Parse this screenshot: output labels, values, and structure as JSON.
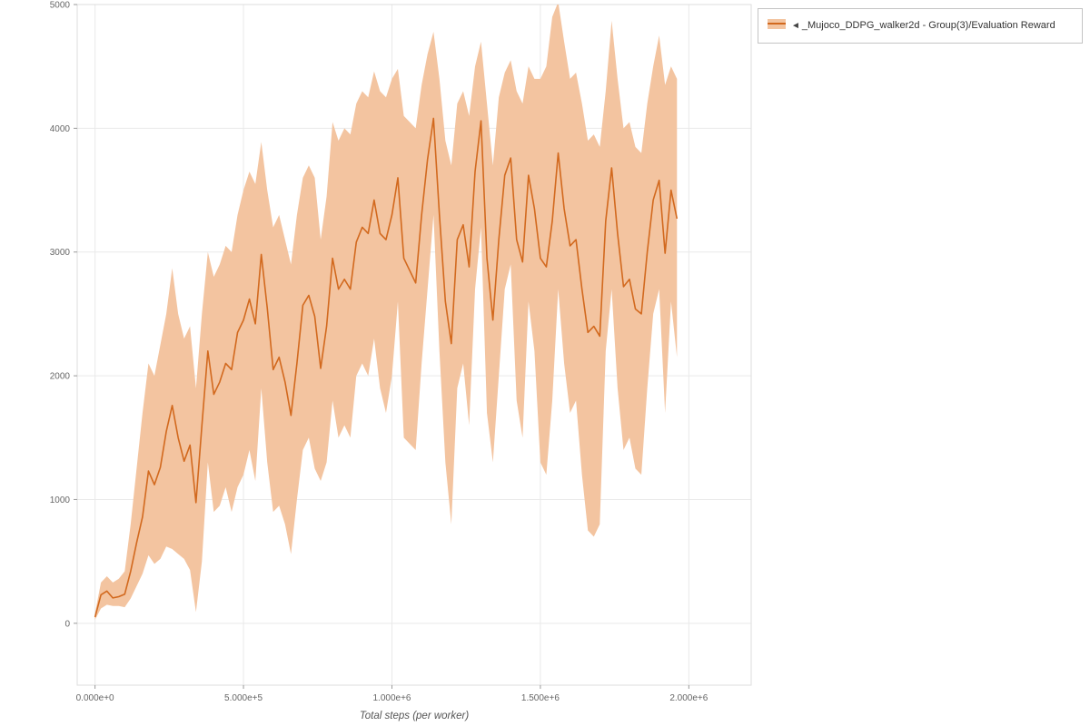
{
  "legend": {
    "marker_icon": "◄",
    "label": "_Mujoco_DDPG_walker2d - Group(3)/Evaluation Reward"
  },
  "chart_data": {
    "type": "line",
    "title": "",
    "xlabel": "Total steps (per worker)",
    "ylabel": "",
    "grid": true,
    "legend_position": "top-right",
    "xlim": [
      -60000,
      2210000
    ],
    "ylim": [
      -500,
      5000
    ],
    "x_ticks": [
      0,
      500000,
      1000000,
      1500000,
      2000000
    ],
    "x_tick_labels": [
      "0.000e+0",
      "5.000e+5",
      "1.000e+6",
      "1.500e+6",
      "2.000e+6"
    ],
    "y_ticks": [
      0,
      1000,
      2000,
      3000,
      4000,
      5000
    ],
    "y_tick_labels": [
      "0",
      "1000",
      "2000",
      "3000",
      "4000",
      "5000"
    ],
    "colors": {
      "line": "#d2691e",
      "band": "#f3c4a0",
      "grid": "#e9e9e9",
      "plot_border": "#dddddd",
      "tick": "#999999",
      "axis_text": "#666666",
      "axis_title": "#555555"
    },
    "x": [
      0,
      20000,
      40000,
      60000,
      80000,
      100000,
      120000,
      140000,
      160000,
      180000,
      200000,
      220000,
      240000,
      260000,
      280000,
      300000,
      320000,
      340000,
      360000,
      380000,
      400000,
      420000,
      440000,
      460000,
      480000,
      500000,
      520000,
      540000,
      560000,
      580000,
      600000,
      620000,
      640000,
      660000,
      680000,
      700000,
      720000,
      740000,
      760000,
      780000,
      800000,
      820000,
      840000,
      860000,
      880000,
      900000,
      920000,
      940000,
      960000,
      980000,
      1000000,
      1020000,
      1040000,
      1060000,
      1080000,
      1100000,
      1120000,
      1140000,
      1160000,
      1180000,
      1200000,
      1220000,
      1240000,
      1260000,
      1280000,
      1300000,
      1320000,
      1340000,
      1360000,
      1380000,
      1400000,
      1420000,
      1440000,
      1460000,
      1480000,
      1500000,
      1520000,
      1540000,
      1560000,
      1580000,
      1600000,
      1620000,
      1640000,
      1660000,
      1680000,
      1700000,
      1720000,
      1740000,
      1760000,
      1780000,
      1800000,
      1820000,
      1840000,
      1860000,
      1880000,
      1900000,
      1920000,
      1940000,
      1960000
    ],
    "series": [
      {
        "name": "mean",
        "values": [
          50,
          230,
          260,
          205,
          215,
          235,
          420,
          650,
          860,
          1230,
          1120,
          1260,
          1550,
          1760,
          1500,
          1310,
          1440,
          975,
          1600,
          2200,
          1850,
          1950,
          2100,
          2050,
          2350,
          2450,
          2620,
          2420,
          2980,
          2550,
          2050,
          2150,
          1950,
          1680,
          2100,
          2570,
          2650,
          2480,
          2060,
          2400,
          2950,
          2700,
          2780,
          2700,
          3080,
          3200,
          3150,
          3420,
          3150,
          3100,
          3300,
          3600,
          2950,
          2850,
          2750,
          3300,
          3750,
          4080,
          3300,
          2600,
          2260,
          3100,
          3220,
          2880,
          3650,
          4060,
          2950,
          2450,
          3100,
          3620,
          3760,
          3100,
          2920,
          3620,
          3350,
          2950,
          2880,
          3250,
          3800,
          3350,
          3050,
          3100,
          2700,
          2350,
          2400,
          2320,
          3250,
          3680,
          3150,
          2720,
          2780,
          2540,
          2500,
          3000,
          3420,
          3580,
          2990,
          3500,
          3270
        ]
      },
      {
        "name": "band_upper",
        "values": [
          80,
          330,
          380,
          330,
          360,
          420,
          800,
          1250,
          1700,
          2100,
          2000,
          2250,
          2500,
          2870,
          2500,
          2300,
          2400,
          1900,
          2500,
          3000,
          2800,
          2900,
          3050,
          3000,
          3300,
          3500,
          3650,
          3550,
          3890,
          3500,
          3200,
          3300,
          3100,
          2900,
          3300,
          3600,
          3700,
          3600,
          3100,
          3450,
          4050,
          3900,
          4000,
          3950,
          4200,
          4300,
          4250,
          4460,
          4300,
          4250,
          4400,
          4480,
          4100,
          4050,
          4000,
          4350,
          4600,
          4780,
          4400,
          3900,
          3700,
          4200,
          4300,
          4100,
          4500,
          4700,
          4200,
          3700,
          4250,
          4450,
          4550,
          4300,
          4200,
          4500,
          4400,
          4400,
          4500,
          4900,
          5020,
          4700,
          4400,
          4450,
          4200,
          3900,
          3950,
          3850,
          4300,
          4870,
          4400,
          4000,
          4050,
          3850,
          3800,
          4200,
          4500,
          4750,
          4350,
          4500,
          4400
        ]
      },
      {
        "name": "band_lower",
        "values": [
          30,
          120,
          150,
          140,
          140,
          130,
          200,
          300,
          400,
          550,
          480,
          520,
          620,
          600,
          560,
          520,
          430,
          90,
          500,
          1300,
          900,
          950,
          1100,
          900,
          1100,
          1200,
          1400,
          1150,
          1900,
          1300,
          900,
          950,
          800,
          560,
          1000,
          1400,
          1500,
          1250,
          1150,
          1300,
          1800,
          1500,
          1600,
          1500,
          2000,
          2100,
          2000,
          2300,
          1900,
          1700,
          2000,
          2600,
          1500,
          1450,
          1400,
          2100,
          2700,
          3300,
          2200,
          1300,
          800,
          1900,
          2100,
          1600,
          2700,
          3200,
          1700,
          1300,
          2000,
          2700,
          2900,
          1800,
          1500,
          2600,
          2200,
          1300,
          1200,
          1800,
          2700,
          2100,
          1700,
          1800,
          1200,
          750,
          700,
          800,
          2200,
          2700,
          1900,
          1400,
          1500,
          1250,
          1200,
          1900,
          2500,
          2700,
          1700,
          2600,
          2150
        ]
      }
    ]
  }
}
